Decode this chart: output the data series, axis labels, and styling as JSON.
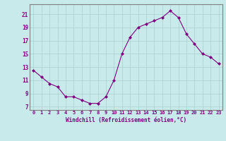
{
  "x": [
    0,
    1,
    2,
    3,
    4,
    5,
    6,
    7,
    8,
    9,
    10,
    11,
    12,
    13,
    14,
    15,
    16,
    17,
    18,
    19,
    20,
    21,
    22,
    23
  ],
  "y": [
    12.5,
    11.5,
    10.5,
    10.0,
    8.5,
    8.5,
    8.0,
    7.5,
    7.5,
    8.5,
    11.0,
    15.0,
    17.5,
    19.0,
    19.5,
    20.0,
    20.5,
    21.5,
    20.5,
    18.0,
    16.5,
    15.0,
    14.5,
    13.5
  ],
  "line_color": "#800080",
  "marker_color": "#800080",
  "bg_color": "#c8eaea",
  "grid_color": "#a8d0d0",
  "xlabel": "Windchill (Refroidissement éolien,°C)",
  "xlabel_color": "#800080",
  "tick_color": "#800080",
  "spine_color": "#808080",
  "yticks": [
    7,
    9,
    11,
    13,
    15,
    17,
    19,
    21
  ],
  "xticks": [
    0,
    1,
    2,
    3,
    4,
    5,
    6,
    7,
    8,
    9,
    10,
    11,
    12,
    13,
    14,
    15,
    16,
    17,
    18,
    19,
    20,
    21,
    22,
    23
  ],
  "ylim": [
    6.5,
    22.5
  ],
  "xlim": [
    -0.5,
    23.5
  ]
}
